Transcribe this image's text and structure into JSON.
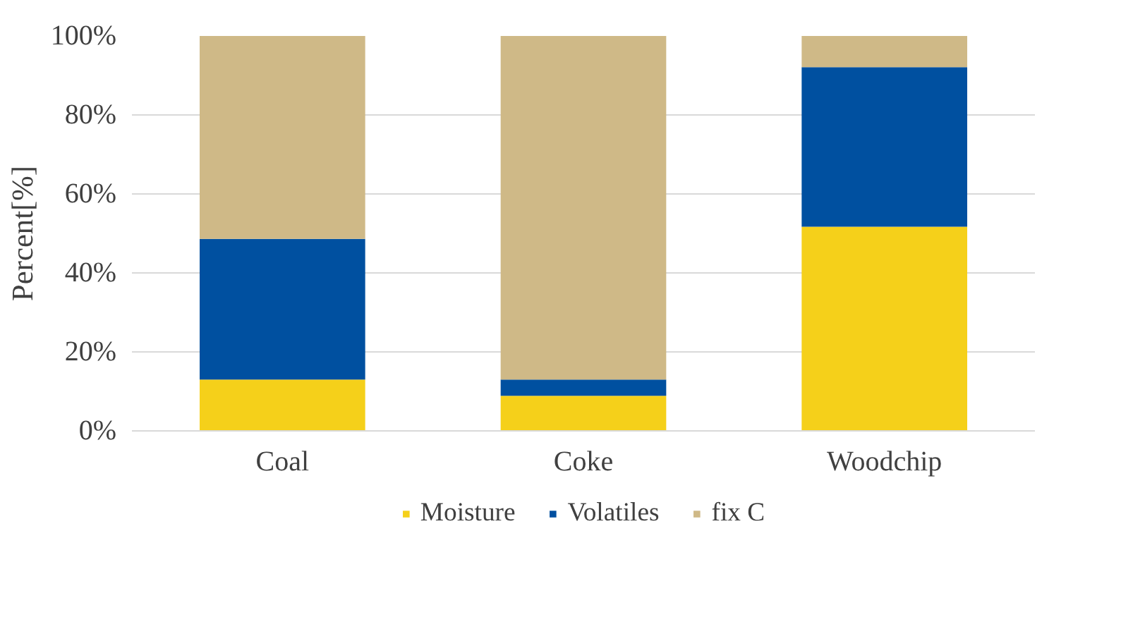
{
  "chart_data": {
    "type": "bar",
    "stacked": true,
    "ylabel": "Percent[%]",
    "categories": [
      "Coal",
      "Coke",
      "Woodchip"
    ],
    "series": [
      {
        "name": "Moisture",
        "color": "#f5d01a",
        "values": [
          13.0,
          8.9,
          51.7
        ]
      },
      {
        "name": "Volatiles",
        "color": "#0050a0",
        "values": [
          35.6,
          4.1,
          40.4
        ]
      },
      {
        "name": "fix C",
        "color": "#cfb987",
        "values": [
          51.4,
          87.0,
          7.9
        ]
      }
    ],
    "ylim": [
      0,
      100
    ],
    "yticks": [
      {
        "value": 0,
        "label": "0%"
      },
      {
        "value": 20,
        "label": "20%"
      },
      {
        "value": 40,
        "label": "40%"
      },
      {
        "value": 60,
        "label": "60%"
      },
      {
        "value": 80,
        "label": "80%"
      },
      {
        "value": 100,
        "label": "100%"
      }
    ],
    "grid": "y",
    "legend": "bottom"
  }
}
